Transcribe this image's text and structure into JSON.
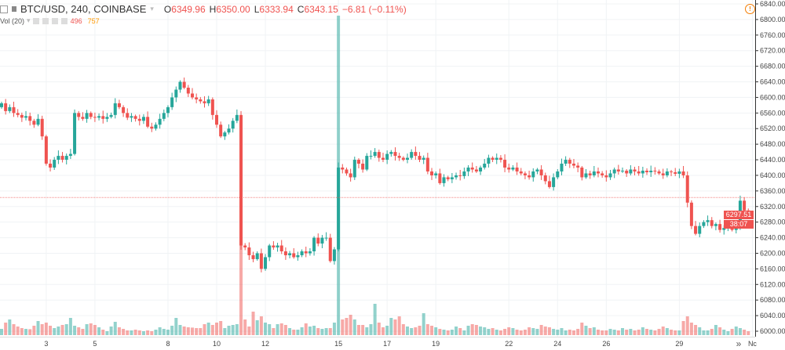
{
  "header": {
    "symbol": "BTC/USD, 240, COINBASE",
    "open_label": "O",
    "open": "6349.96",
    "high_label": "H",
    "high": "6350.00",
    "low_label": "L",
    "low": "6333.94",
    "close_label": "C",
    "close": "6343.15",
    "change": "−6.81 (−0.11%)",
    "volume_label": "Vol (20)",
    "volume_value": "496",
    "volume_ma": "757"
  },
  "price_tag": "6297.51",
  "countdown_tag": "38:07",
  "scroll_button": "»",
  "warning_icon": "!",
  "colors": {
    "up": "#26a69a",
    "down": "#ef5350",
    "volume_ma": "#ff9800",
    "price_line": "#ef5350"
  },
  "chart_data": {
    "type": "candlestick",
    "yaxis": {
      "min": 6000,
      "max": 6840,
      "step": 40,
      "position": "right"
    },
    "ytick_labels": [
      "6840.00",
      "6800.00",
      "6760.00",
      "6720.00",
      "6680.00",
      "6640.00",
      "6600.00",
      "6560.00",
      "6520.00",
      "6480.00",
      "6440.00",
      "6400.00",
      "6360.00",
      "6320.00",
      "6280.00",
      "6240.00",
      "6200.00",
      "6160.00",
      "6120.00",
      "6080.00",
      "6040.00",
      "6000.00"
    ],
    "xtick_labels": [
      {
        "label": "3",
        "candle": 11
      },
      {
        "label": "5",
        "candle": 23
      },
      {
        "label": "8",
        "candle": 41
      },
      {
        "label": "10",
        "candle": 53
      },
      {
        "label": "12",
        "candle": 65
      },
      {
        "label": "15",
        "candle": 83
      },
      {
        "label": "17",
        "candle": 95
      },
      {
        "label": "19",
        "candle": 107
      },
      {
        "label": "22",
        "candle": 125
      },
      {
        "label": "24",
        "candle": 137
      },
      {
        "label": "26",
        "candle": 149
      },
      {
        "label": "29",
        "candle": 167
      },
      {
        "label": "Nc",
        "candle": 185
      }
    ],
    "price_line": 6343.15,
    "last_price": 6297.51,
    "first_open": 6575,
    "closes": [
      6585,
      6565,
      6575,
      6560,
      6555,
      6548,
      6552,
      6540,
      6530,
      6545,
      6500,
      6430,
      6420,
      6440,
      6450,
      6440,
      6450,
      6455,
      6560,
      6550,
      6545,
      6560,
      6550,
      6548,
      6552,
      6545,
      6550,
      6555,
      6585,
      6575,
      6560,
      6548,
      6552,
      6545,
      6540,
      6550,
      6525,
      6520,
      6530,
      6545,
      6560,
      6575,
      6600,
      6620,
      6640,
      6625,
      6610,
      6600,
      6595,
      6590,
      6585,
      6595,
      6555,
      6530,
      6500,
      6510,
      6520,
      6540,
      6555,
      6220,
      6215,
      6195,
      6185,
      6200,
      6160,
      6190,
      6220,
      6215,
      6220,
      6205,
      6195,
      6200,
      6190,
      6195,
      6205,
      6200,
      6205,
      6240,
      6225,
      6240,
      6240,
      6180,
      6210,
      6420,
      6415,
      6405,
      6395,
      6440,
      6430,
      6415,
      6450,
      6450,
      6460,
      6445,
      6440,
      6455,
      6460,
      6450,
      6445,
      6440,
      6445,
      6460,
      6450,
      6440,
      6445,
      6410,
      6400,
      6405,
      6380,
      6395,
      6390,
      6395,
      6400,
      6398,
      6410,
      6420,
      6415,
      6410,
      6420,
      6430,
      6445,
      6440,
      6445,
      6440,
      6420,
      6415,
      6420,
      6410,
      6405,
      6400,
      6395,
      6410,
      6415,
      6400,
      6385,
      6370,
      6395,
      6410,
      6430,
      6440,
      6430,
      6425,
      6420,
      6395,
      6405,
      6400,
      6410,
      6405,
      6400,
      6395,
      6405,
      6415,
      6410,
      6412,
      6405,
      6415,
      6410,
      6405,
      6412,
      6408,
      6412,
      6410,
      6405,
      6400,
      6410,
      6408,
      6404,
      6410,
      6400,
      6330,
      6270,
      6250,
      6270,
      6280,
      6285,
      6270,
      6275,
      6260,
      6265,
      6270,
      6260,
      6265,
      6335,
      6310,
      6297.51
    ],
    "volumes": [
      400,
      800,
      1000,
      700,
      550,
      450,
      400,
      380,
      600,
      900,
      700,
      800,
      600,
      450,
      550,
      650,
      700,
      1100,
      600,
      500,
      400,
      700,
      750,
      650,
      500,
      350,
      250,
      550,
      850,
      500,
      400,
      300,
      300,
      350,
      300,
      250,
      300,
      250,
      350,
      500,
      400,
      350,
      600,
      1100,
      650,
      550,
      500,
      480,
      450,
      450,
      700,
      800,
      650,
      800,
      900,
      450,
      600,
      650,
      700,
      8500,
      1000,
      550,
      1500,
      950,
      1200,
      800,
      700,
      450,
      700,
      750,
      650,
      450,
      350,
      350,
      500,
      750,
      550,
      600,
      450,
      400,
      450,
      450,
      800,
      20400,
      1000,
      1100,
      1300,
      1000,
      650,
      650,
      500,
      700,
      2000,
      800,
      500,
      600,
      1100,
      1000,
      1200,
      700,
      550,
      450,
      500,
      600,
      1400,
      700,
      600,
      500,
      400,
      350,
      300,
      350,
      550,
      450,
      300,
      600,
      700,
      650,
      550,
      500,
      400,
      450,
      350,
      300,
      400,
      500,
      450,
      350,
      300,
      350,
      500,
      450,
      400,
      650,
      550,
      500,
      400,
      350,
      450,
      300,
      350,
      300,
      400,
      800,
      600,
      450,
      500,
      350,
      300,
      300,
      400,
      350,
      300,
      450,
      350,
      400,
      300,
      350,
      500,
      400,
      350,
      300,
      400,
      550,
      450,
      350,
      300,
      300,
      900,
      1200,
      800,
      650,
      500,
      300,
      300,
      400,
      650,
      500,
      350,
      250,
      400,
      550,
      450,
      350,
      250
    ]
  }
}
